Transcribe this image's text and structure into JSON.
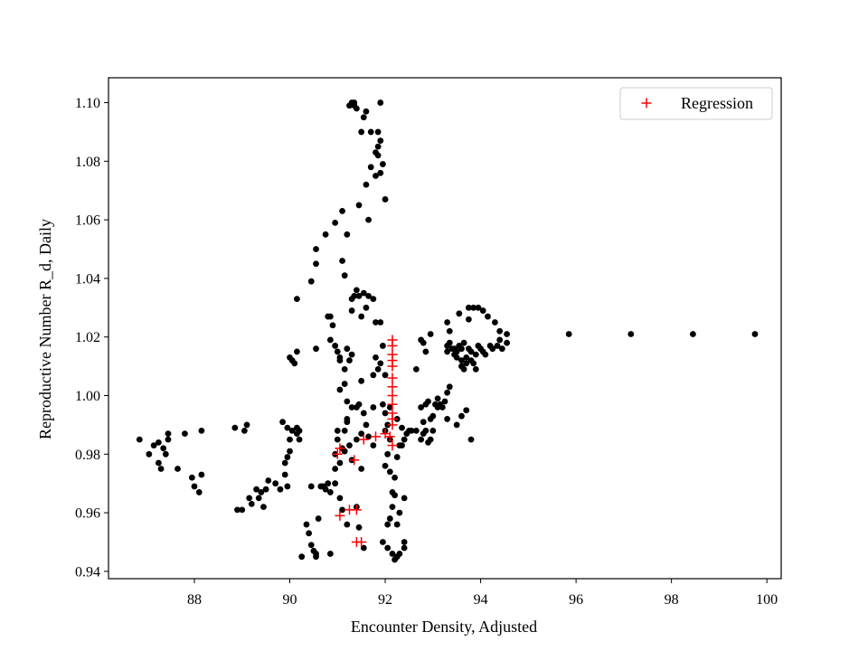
{
  "chart_data": {
    "type": "scatter",
    "xlabel": "Encounter Density, Adjusted",
    "ylabel": "Reproductive Number R_d, Daily",
    "xlim": [
      86.2,
      100.3
    ],
    "ylim": [
      0.9375,
      1.1085
    ],
    "xticks": [
      88,
      90,
      92,
      94,
      96,
      98,
      100
    ],
    "yticks": [
      0.94,
      0.96,
      0.98,
      1.0,
      1.02,
      1.04,
      1.06,
      1.08,
      1.1
    ],
    "ytick_format": 2,
    "grid": false,
    "legend": {
      "position": "top-right",
      "entries": [
        "Regression"
      ]
    },
    "series": [
      {
        "name": "",
        "marker": "dot",
        "color": "#000000",
        "points": [
          [
            86.85,
            0.985
          ],
          [
            87.05,
            0.98
          ],
          [
            87.15,
            0.983
          ],
          [
            87.25,
            0.984
          ],
          [
            87.25,
            0.977
          ],
          [
            87.3,
            0.975
          ],
          [
            87.35,
            0.982
          ],
          [
            87.4,
            0.98
          ],
          [
            87.45,
            0.985
          ],
          [
            87.45,
            0.987
          ],
          [
            87.65,
            0.975
          ],
          [
            87.8,
            0.987
          ],
          [
            87.95,
            0.972
          ],
          [
            88.0,
            0.969
          ],
          [
            88.1,
            0.967
          ],
          [
            88.15,
            0.973
          ],
          [
            88.15,
            0.988
          ],
          [
            88.85,
            0.989
          ],
          [
            88.9,
            0.961
          ],
          [
            89.0,
            0.961
          ],
          [
            89.05,
            0.988
          ],
          [
            89.1,
            0.99
          ],
          [
            89.15,
            0.965
          ],
          [
            89.2,
            0.963
          ],
          [
            89.3,
            0.968
          ],
          [
            89.35,
            0.965
          ],
          [
            89.4,
            0.967
          ],
          [
            89.45,
            0.962
          ],
          [
            89.5,
            0.968
          ],
          [
            89.55,
            0.971
          ],
          [
            89.7,
            0.97
          ],
          [
            89.8,
            0.968
          ],
          [
            89.85,
            0.991
          ],
          [
            89.9,
            0.973
          ],
          [
            89.9,
            0.977
          ],
          [
            89.95,
            0.979
          ],
          [
            89.95,
            0.969
          ],
          [
            89.95,
            0.989
          ],
          [
            90.0,
            0.981
          ],
          [
            90.0,
            0.985
          ],
          [
            90.05,
            0.988
          ],
          [
            90.0,
            1.013
          ],
          [
            90.05,
            1.012
          ],
          [
            90.1,
            1.011
          ],
          [
            90.15,
            0.987
          ],
          [
            90.15,
            0.989
          ],
          [
            90.2,
            0.985
          ],
          [
            90.2,
            0.988
          ],
          [
            90.15,
            1.015
          ],
          [
            90.15,
            1.033
          ],
          [
            90.25,
            0.945
          ],
          [
            90.35,
            0.956
          ],
          [
            90.4,
            0.953
          ],
          [
            90.45,
            0.949
          ],
          [
            90.45,
            0.969
          ],
          [
            90.5,
            0.947
          ],
          [
            90.55,
            0.946
          ],
          [
            90.55,
            0.945
          ],
          [
            90.45,
            1.039
          ],
          [
            90.55,
            1.016
          ],
          [
            90.55,
            1.045
          ],
          [
            90.55,
            1.05
          ],
          [
            90.6,
            0.958
          ],
          [
            90.65,
            0.969
          ],
          [
            90.7,
            0.969
          ],
          [
            90.75,
            1.055
          ],
          [
            90.75,
            0.968
          ],
          [
            90.8,
            1.027
          ],
          [
            90.8,
            0.97
          ],
          [
            90.85,
            0.967
          ],
          [
            90.85,
            1.019
          ],
          [
            90.85,
            0.946
          ],
          [
            90.85,
            1.027
          ],
          [
            90.9,
            1.024
          ],
          [
            90.95,
            0.97
          ],
          [
            90.95,
            0.975
          ],
          [
            90.95,
            1.059
          ],
          [
            90.95,
            1.017
          ],
          [
            90.95,
            0.98
          ],
          [
            91.0,
            0.985
          ],
          [
            91.0,
            1.015
          ],
          [
            91.0,
            0.988
          ],
          [
            91.05,
            0.965
          ],
          [
            91.05,
            1.013
          ],
          [
            91.05,
            1.002
          ],
          [
            91.05,
            1.012
          ],
          [
            91.05,
            0.977
          ],
          [
            91.1,
            0.961
          ],
          [
            91.1,
            0.982
          ],
          [
            91.1,
            1.063
          ],
          [
            91.1,
            1.046
          ],
          [
            91.15,
            1.004
          ],
          [
            91.15,
            1.041
          ],
          [
            91.15,
            0.988
          ],
          [
            91.15,
            0.981
          ],
          [
            91.15,
            1.009
          ],
          [
            91.2,
            0.956
          ],
          [
            91.2,
            1.055
          ],
          [
            91.2,
            1.016
          ],
          [
            91.2,
            0.991
          ],
          [
            91.2,
            0.998
          ],
          [
            91.2,
            0.992
          ],
          [
            91.25,
            0.983
          ],
          [
            91.25,
            1.012
          ],
          [
            91.25,
            1.099
          ],
          [
            91.3,
            1.1
          ],
          [
            91.3,
            1.014
          ],
          [
            91.3,
            1.029
          ],
          [
            91.3,
            1.033
          ],
          [
            91.3,
            0.996
          ],
          [
            91.3,
            0.978
          ],
          [
            91.35,
            1.099
          ],
          [
            91.35,
            1.1
          ],
          [
            91.35,
            1.034
          ],
          [
            91.4,
            1.098
          ],
          [
            91.4,
            1.036
          ],
          [
            91.4,
            0.996
          ],
          [
            91.4,
            0.985
          ],
          [
            91.4,
            0.962
          ],
          [
            91.45,
            1.065
          ],
          [
            91.45,
            1.034
          ],
          [
            91.45,
            0.997
          ],
          [
            91.45,
            0.955
          ],
          [
            91.5,
            1.09
          ],
          [
            91.5,
            1.027
          ],
          [
            91.5,
            1.005
          ],
          [
            91.5,
            0.987
          ],
          [
            91.5,
            0.975
          ],
          [
            91.55,
            1.095
          ],
          [
            91.55,
            1.035
          ],
          [
            91.55,
            0.994
          ],
          [
            91.55,
            0.948
          ],
          [
            91.6,
            1.097
          ],
          [
            91.6,
            1.072
          ],
          [
            91.6,
            1.03
          ],
          [
            91.6,
            0.99
          ],
          [
            91.65,
            1.06
          ],
          [
            91.65,
            1.034
          ],
          [
            91.65,
            0.986
          ],
          [
            91.7,
            1.09
          ],
          [
            91.7,
            1.078
          ],
          [
            91.75,
            1.033
          ],
          [
            91.75,
            0.983
          ],
          [
            91.75,
            1.007
          ],
          [
            91.75,
            0.996
          ],
          [
            91.8,
            1.075
          ],
          [
            91.8,
            1.083
          ],
          [
            91.8,
            1.025
          ],
          [
            91.8,
            1.013
          ],
          [
            91.85,
            1.085
          ],
          [
            91.85,
            1.09
          ],
          [
            91.85,
            1.082
          ],
          [
            91.85,
            1.009
          ],
          [
            91.9,
            1.087
          ],
          [
            91.9,
            1.1
          ],
          [
            91.9,
            1.076
          ],
          [
            91.9,
            1.025
          ],
          [
            91.9,
            1.011
          ],
          [
            91.95,
            1.079
          ],
          [
            91.95,
            1.017
          ],
          [
            91.95,
            0.997
          ],
          [
            91.95,
            0.95
          ],
          [
            92.0,
            1.067
          ],
          [
            92.0,
            1.007
          ],
          [
            92.0,
            0.976
          ],
          [
            92.0,
            0.994
          ],
          [
            92.0,
            0.988
          ],
          [
            92.05,
            0.98
          ],
          [
            92.05,
            0.956
          ],
          [
            92.05,
            0.948
          ],
          [
            92.05,
            0.99
          ],
          [
            92.1,
            0.958
          ],
          [
            92.1,
            0.974
          ],
          [
            92.1,
            0.985
          ],
          [
            92.1,
            0.996
          ],
          [
            92.15,
            0.962
          ],
          [
            92.15,
            0.946
          ],
          [
            92.15,
            0.967
          ],
          [
            92.2,
            0.944
          ],
          [
            92.2,
            0.966
          ],
          [
            92.2,
            0.972
          ],
          [
            92.25,
            0.945
          ],
          [
            92.25,
            0.992
          ],
          [
            92.25,
            0.979
          ],
          [
            92.25,
            0.956
          ],
          [
            92.3,
            0.96
          ],
          [
            92.3,
            0.983
          ],
          [
            92.3,
            0.946
          ],
          [
            92.35,
            0.989
          ],
          [
            92.35,
            0.983
          ],
          [
            92.4,
            0.965
          ],
          [
            92.4,
            0.948
          ],
          [
            92.4,
            0.985
          ],
          [
            92.4,
            0.95
          ],
          [
            92.45,
            0.987
          ],
          [
            92.5,
            0.988
          ],
          [
            92.55,
            0.988
          ],
          [
            92.65,
            0.988
          ],
          [
            92.65,
            1.009
          ],
          [
            92.75,
            0.985
          ],
          [
            92.75,
            0.996
          ],
          [
            92.8,
            0.991
          ],
          [
            92.8,
            0.987
          ],
          [
            92.75,
            1.019
          ],
          [
            92.8,
            1.018
          ],
          [
            92.85,
            0.997
          ],
          [
            92.85,
            1.015
          ],
          [
            92.85,
            0.988
          ],
          [
            92.9,
            0.998
          ],
          [
            92.95,
            0.992
          ],
          [
            92.95,
            1.021
          ],
          [
            93.0,
            0.993
          ],
          [
            93.05,
            0.997
          ],
          [
            93.1,
            0.996
          ],
          [
            93.1,
            0.999
          ],
          [
            93.15,
            0.997
          ],
          [
            93.2,
            0.996
          ],
          [
            93.25,
            0.998
          ],
          [
            93.3,
            1.001
          ],
          [
            93.35,
            1.003
          ],
          [
            93.3,
            1.017
          ],
          [
            93.3,
            1.015
          ],
          [
            93.3,
            1.025
          ],
          [
            93.35,
            1.018
          ],
          [
            93.35,
            1.022
          ],
          [
            93.4,
            1.016
          ],
          [
            93.45,
            1.016
          ],
          [
            93.45,
            1.014
          ],
          [
            93.5,
            1.013
          ],
          [
            93.5,
            1.015
          ],
          [
            93.55,
            1.028
          ],
          [
            93.55,
            1.017
          ],
          [
            93.6,
            1.016
          ],
          [
            93.6,
            1.012
          ],
          [
            93.6,
            1.01
          ],
          [
            93.65,
            1.018
          ],
          [
            93.65,
            1.009
          ],
          [
            93.7,
            1.013
          ],
          [
            93.7,
            1.011
          ],
          [
            93.75,
            1.026
          ],
          [
            93.75,
            1.03
          ],
          [
            93.75,
            1.016
          ],
          [
            93.8,
            1.012
          ],
          [
            93.8,
            1.015
          ],
          [
            93.85,
            1.03
          ],
          [
            93.85,
            1.011
          ],
          [
            93.9,
            1.009
          ],
          [
            93.9,
            1.014
          ],
          [
            93.95,
            1.03
          ],
          [
            93.95,
            1.017
          ],
          [
            94.0,
            1.016
          ],
          [
            94.05,
            1.029
          ],
          [
            94.05,
            1.015
          ],
          [
            94.1,
            1.014
          ],
          [
            94.15,
            1.027
          ],
          [
            94.2,
            1.017
          ],
          [
            94.25,
            1.016
          ],
          [
            94.3,
            1.025
          ],
          [
            94.35,
            1.017
          ],
          [
            94.4,
            1.019
          ],
          [
            94.4,
            1.022
          ],
          [
            94.45,
            1.016
          ],
          [
            94.55,
            1.021
          ],
          [
            94.55,
            1.018
          ],
          [
            93.7,
            0.995
          ],
          [
            93.6,
            0.993
          ],
          [
            93.5,
            0.99
          ],
          [
            93.3,
            0.992
          ],
          [
            93.0,
            0.988
          ],
          [
            92.95,
            0.985
          ],
          [
            92.9,
            0.984
          ],
          [
            93.8,
            0.985
          ],
          [
            95.85,
            1.021
          ],
          [
            97.15,
            1.021
          ],
          [
            98.45,
            1.021
          ],
          [
            99.75,
            1.021
          ]
        ]
      },
      {
        "name": "Regression",
        "marker": "plus",
        "color": "#ff0000",
        "points": [
          [
            92.15,
            1.019
          ],
          [
            92.15,
            1.017
          ],
          [
            92.15,
            1.014
          ],
          [
            92.15,
            1.012
          ],
          [
            92.15,
            1.01
          ],
          [
            92.15,
            1.006
          ],
          [
            92.15,
            1.003
          ],
          [
            92.15,
            1.0
          ],
          [
            92.15,
            0.997
          ],
          [
            92.15,
            0.994
          ],
          [
            92.15,
            0.992
          ],
          [
            92.15,
            0.99
          ],
          [
            92.1,
            0.986
          ],
          [
            92.15,
            0.983
          ],
          [
            92.0,
            0.987
          ],
          [
            91.8,
            0.986
          ],
          [
            91.55,
            0.985
          ],
          [
            91.0,
            0.98
          ],
          [
            91.05,
            0.982
          ],
          [
            91.35,
            0.978
          ],
          [
            91.05,
            0.959
          ],
          [
            91.25,
            0.961
          ],
          [
            91.4,
            0.961
          ],
          [
            91.4,
            0.95
          ],
          [
            91.5,
            0.95
          ]
        ]
      }
    ]
  }
}
